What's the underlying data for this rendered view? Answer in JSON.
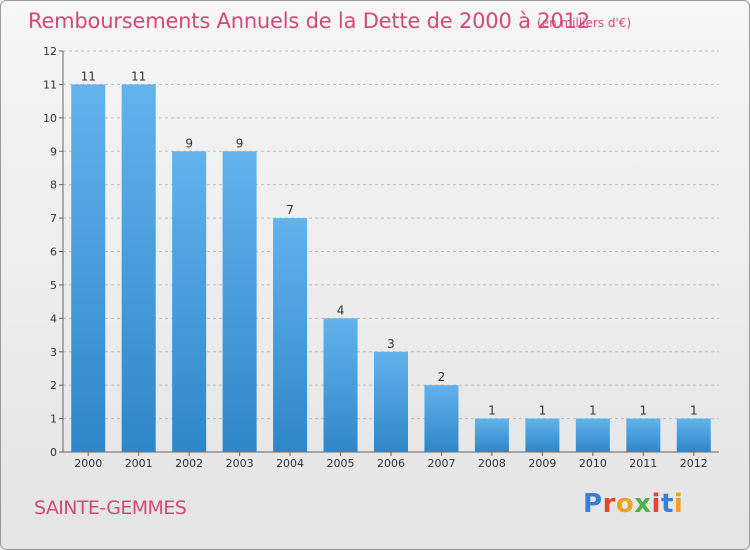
{
  "title": "Remboursements Annuels de la Dette de 2000 à 2012",
  "unit_note": "(en milliers d'€)",
  "city": "SAINTE-GEMMES",
  "logo": {
    "text": "Proxiti",
    "letter_colors": [
      "#3a7fd4",
      "#e3462f",
      "#f0a21c",
      "#4bb34a",
      "#e3462f",
      "#3a7fd4",
      "#f0a21c"
    ]
  },
  "colors": {
    "bar_top": "#62b3ec",
    "bar_bottom": "#2f86c8",
    "title": "#d2497a",
    "grid": "#bdbdbd"
  },
  "chart_data": {
    "type": "bar",
    "categories": [
      "2000",
      "2001",
      "2002",
      "2003",
      "2004",
      "2005",
      "2006",
      "2007",
      "2008",
      "2009",
      "2010",
      "2011",
      "2012"
    ],
    "values": [
      11,
      11,
      9,
      9,
      7,
      4,
      3,
      2,
      1,
      1,
      1,
      1,
      1
    ],
    "data_labels": [
      "11",
      "11",
      "9",
      "9",
      "7",
      "4",
      "3",
      "2",
      "1",
      "1",
      "1",
      "1",
      "1"
    ],
    "ylim": [
      0,
      12
    ],
    "yticks": [
      0,
      1,
      2,
      3,
      4,
      5,
      6,
      7,
      8,
      9,
      10,
      11,
      12
    ],
    "grid": true
  }
}
